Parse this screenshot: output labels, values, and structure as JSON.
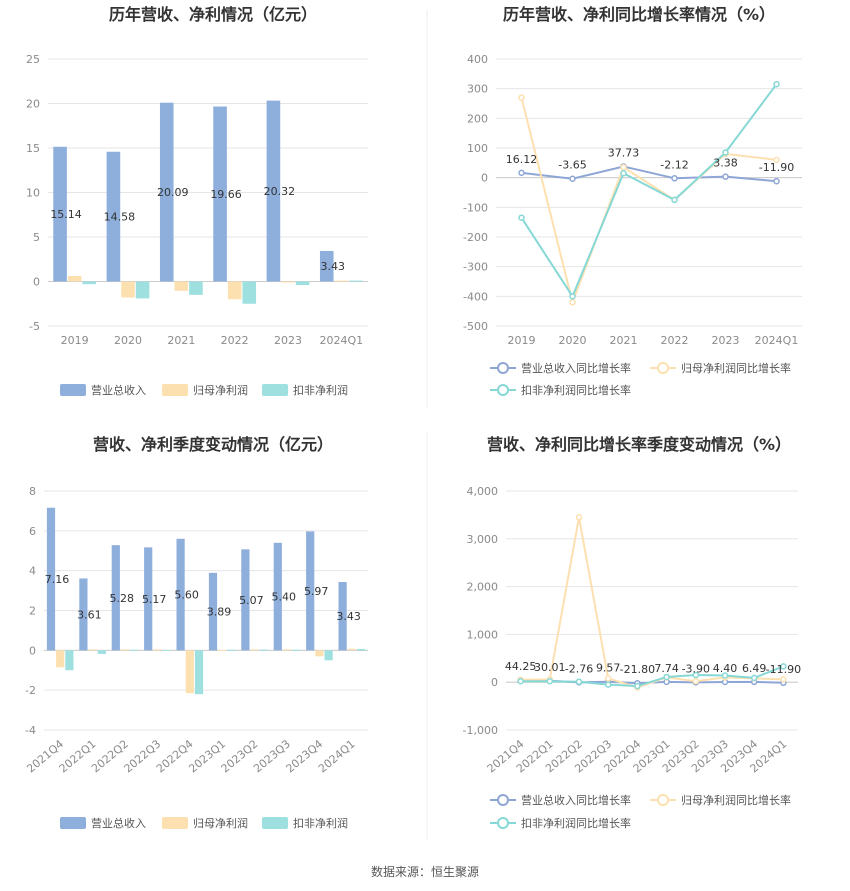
{
  "source_label": "数据来源：恒生聚源",
  "colors": {
    "revenue": "#8eaedc",
    "parent_net_profit": "#fde0b0",
    "deducted_net_profit": "#9ee0e0",
    "revenue_line": "#8ea6d6",
    "parent_line": "#fde0b0",
    "deducted_line": "#86d8d6"
  },
  "chart_data": [
    {
      "id": "annual_amount",
      "type": "bar",
      "title": "历年营收、净利情况（亿元）",
      "categories": [
        "2019",
        "2020",
        "2021",
        "2022",
        "2023",
        "2024Q1"
      ],
      "ylim": [
        -5,
        25
      ],
      "yticks": [
        -5,
        0,
        5,
        10,
        15,
        20,
        25
      ],
      "ytick_labels": [
        "-5",
        "0",
        "5",
        "10",
        "15",
        "20",
        "25"
      ],
      "grid": true,
      "legend_position": "bottom",
      "series": [
        {
          "name": "营业总收入",
          "color_key": "revenue",
          "values": [
            15.14,
            14.58,
            20.09,
            19.66,
            20.32,
            3.43
          ],
          "labels": [
            "15.14",
            "14.58",
            "20.09",
            "19.66",
            "20.32",
            "3.43"
          ]
        },
        {
          "name": "归母净利润",
          "color_key": "parent_net_profit",
          "values": [
            0.62,
            -1.8,
            -1.05,
            -2.0,
            -0.1,
            0.1
          ]
        },
        {
          "name": "扣非净利润",
          "color_key": "deducted_net_profit",
          "values": [
            -0.3,
            -1.9,
            -1.5,
            -2.5,
            -0.4,
            0.1
          ]
        }
      ]
    },
    {
      "id": "annual_growth",
      "type": "line",
      "title": "历年营收、净利同比增长率情况（%）",
      "categories": [
        "2019",
        "2020",
        "2021",
        "2022",
        "2023",
        "2024Q1"
      ],
      "ylim": [
        -500,
        400
      ],
      "yticks": [
        -500,
        -400,
        -300,
        -200,
        -100,
        0,
        100,
        200,
        300,
        400
      ],
      "ytick_labels": [
        "-500",
        "-400",
        "-300",
        "-200",
        "-100",
        "0",
        "100",
        "200",
        "300",
        "400"
      ],
      "grid": true,
      "legend_position": "bottom",
      "series": [
        {
          "name": "营业总收入同比增长率",
          "color_key": "revenue_line",
          "values": [
            16.12,
            -3.65,
            37.73,
            -2.12,
            3.38,
            -11.9
          ],
          "labels": [
            "16.12",
            "-3.65",
            "37.73",
            "-2.12",
            "3.38",
            "-11.90"
          ]
        },
        {
          "name": "归母净利润同比增长率",
          "color_key": "parent_line",
          "values": [
            270,
            -420,
            35,
            -75,
            80,
            60
          ]
        },
        {
          "name": "扣非净利润同比增长率",
          "color_key": "deducted_line",
          "values": [
            -135,
            -400,
            15,
            -75,
            85,
            315
          ]
        }
      ]
    },
    {
      "id": "quarterly_amount",
      "type": "bar",
      "title": "营收、净利季度变动情况（亿元）",
      "categories": [
        "2021Q4",
        "2022Q1",
        "2022Q2",
        "2022Q3",
        "2022Q4",
        "2023Q1",
        "2023Q2",
        "2023Q3",
        "2023Q4",
        "2024Q1"
      ],
      "ylim": [
        -4,
        8
      ],
      "yticks": [
        -4,
        -2,
        0,
        2,
        4,
        6,
        8
      ],
      "ytick_labels": [
        "-4",
        "-2",
        "0",
        "2",
        "4",
        "6",
        "8"
      ],
      "grid": true,
      "legend_position": "bottom",
      "series": [
        {
          "name": "营业总收入",
          "color_key": "revenue",
          "values": [
            7.16,
            3.61,
            5.28,
            5.17,
            5.6,
            3.89,
            5.07,
            5.4,
            5.97,
            3.43
          ],
          "labels": [
            "7.16",
            "3.61",
            "5.28",
            "5.17",
            "5.60",
            "3.89",
            "5.07",
            "5.40",
            "5.97",
            "3.43"
          ]
        },
        {
          "name": "归母净利润",
          "color_key": "parent_net_profit",
          "values": [
            -0.85,
            0.05,
            0.05,
            0.05,
            -2.15,
            0.02,
            0.05,
            0.05,
            -0.3,
            0.08
          ]
        },
        {
          "name": "扣非净利润",
          "color_key": "deducted_net_profit",
          "values": [
            -1.0,
            -0.18,
            0.03,
            0.02,
            -2.2,
            0.03,
            0.04,
            0.03,
            -0.5,
            0.07
          ]
        }
      ]
    },
    {
      "id": "quarterly_growth",
      "type": "line",
      "title": "营收、净利同比增长率季度变动情况（%）",
      "categories": [
        "2021Q4",
        "2022Q1",
        "2022Q2",
        "2022Q3",
        "2022Q4",
        "2023Q1",
        "2023Q2",
        "2023Q3",
        "2023Q4",
        "2024Q1"
      ],
      "ylim": [
        -1000,
        4000
      ],
      "yticks": [
        -1000,
        0,
        1000,
        2000,
        3000,
        4000
      ],
      "ytick_labels": [
        "-1,000",
        "0",
        "1,000",
        "2,000",
        "3,000",
        "4,000"
      ],
      "grid": true,
      "legend_position": "bottom",
      "series": [
        {
          "name": "营业总收入同比增长率",
          "color_key": "revenue_line",
          "values": [
            44.25,
            30.01,
            -2.76,
            9.57,
            -21.8,
            7.74,
            -3.9,
            4.4,
            6.49,
            -11.9
          ],
          "labels": [
            "44.25",
            "30.01",
            "-2.76",
            "9.57",
            "-21.80",
            "7.74",
            "-3.90",
            "4.40",
            "6.49",
            "-11.90"
          ]
        },
        {
          "name": "归母净利润同比增长率",
          "color_key": "parent_line",
          "values": [
            50,
            60,
            3450,
            80,
            -110,
            100,
            20,
            100,
            80,
            60
          ]
        },
        {
          "name": "扣非净利润同比增长率",
          "color_key": "deducted_line",
          "values": [
            20,
            20,
            10,
            -50,
            -80,
            110,
            150,
            140,
            90,
            330
          ]
        }
      ]
    }
  ]
}
